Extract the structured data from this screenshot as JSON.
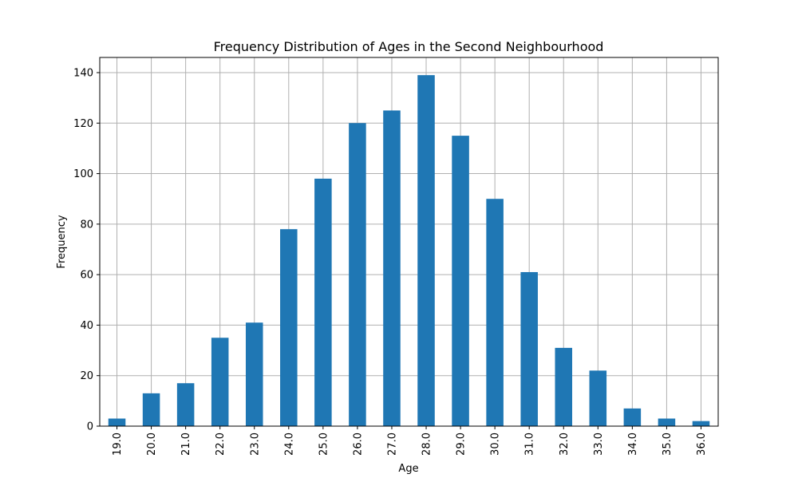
{
  "chart_data": {
    "type": "bar",
    "title": "Frequency Distribution of Ages in the Second Neighbourhood",
    "xlabel": "Age",
    "ylabel": "Frequency",
    "categories": [
      "19.0",
      "20.0",
      "21.0",
      "22.0",
      "23.0",
      "24.0",
      "25.0",
      "26.0",
      "27.0",
      "28.0",
      "29.0",
      "30.0",
      "31.0",
      "32.0",
      "33.0",
      "34.0",
      "35.0",
      "36.0"
    ],
    "values": [
      3,
      13,
      17,
      35,
      41,
      78,
      98,
      120,
      125,
      139,
      115,
      90,
      61,
      31,
      22,
      7,
      3,
      2
    ],
    "ylim": [
      0,
      146
    ],
    "yticks": [
      0,
      20,
      40,
      60,
      80,
      100,
      120,
      140
    ],
    "grid": true,
    "bar_color": "#1f77b4",
    "grid_color": "#b0b0b0",
    "xtick_rotation": "vertical"
  }
}
